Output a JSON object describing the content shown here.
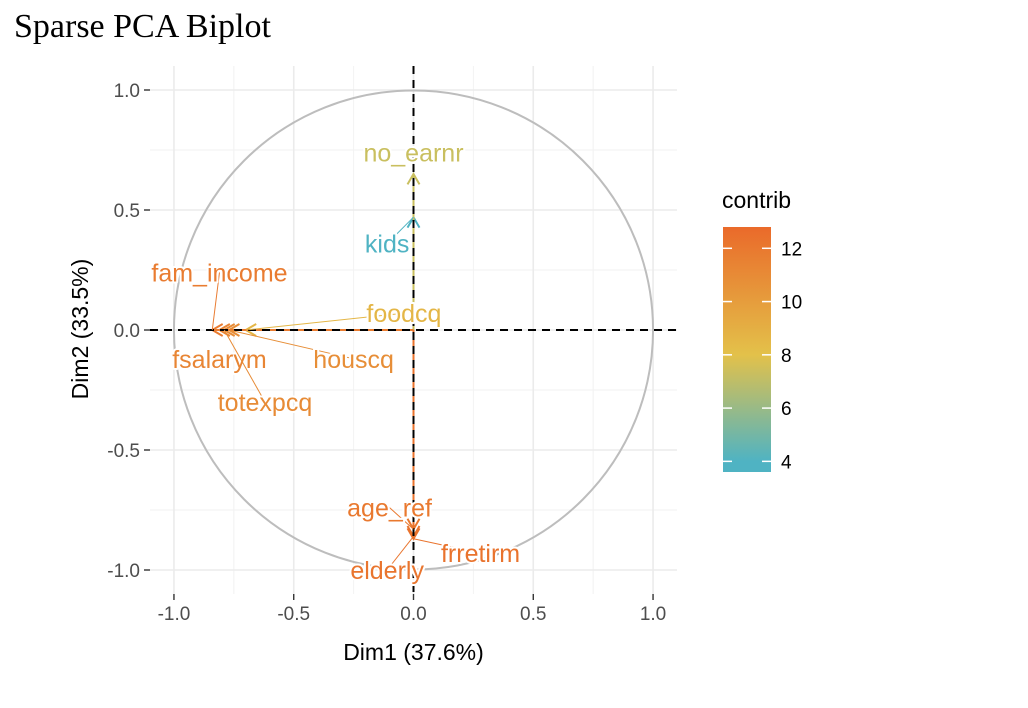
{
  "title": "Sparse PCA Biplot",
  "chart_data": {
    "type": "scatter",
    "subtype": "pca-variable-correlation-circle",
    "xlabel": "Dim1 (37.6%)",
    "ylabel": "Dim2 (33.5%)",
    "xlim": [
      -1.1,
      1.1
    ],
    "ylim": [
      -1.1,
      1.1
    ],
    "x_ticks": [
      {
        "value": -1.0,
        "label": "-1.0"
      },
      {
        "value": -0.5,
        "label": "-0.5"
      },
      {
        "value": 0.0,
        "label": "0.0"
      },
      {
        "value": 0.5,
        "label": "0.5"
      },
      {
        "value": 1.0,
        "label": "1.0"
      }
    ],
    "y_ticks": [
      {
        "value": 1.0,
        "label": "1.0"
      },
      {
        "value": 0.5,
        "label": "0.5"
      },
      {
        "value": 0.0,
        "label": "0.0"
      },
      {
        "value": -0.5,
        "label": "-0.5"
      },
      {
        "value": -1.0,
        "label": "-1.0"
      }
    ],
    "grid": true,
    "unit_circle": true,
    "color_scale": {
      "name": "contrib",
      "min": 3.6,
      "max": 12.8,
      "stops": [
        {
          "value": 4,
          "color": "#4fb3c3"
        },
        {
          "value": 8,
          "color": "#e3c14a"
        },
        {
          "value": 12.8,
          "color": "#ea6a2a"
        }
      ],
      "ticks": [
        "12",
        "10",
        "8",
        "6",
        "4"
      ],
      "legend_position": "right"
    },
    "variables": [
      {
        "name": "no_earnr",
        "x": 0.0,
        "y": 0.65,
        "contrib": 7.3,
        "label_x": 0.0,
        "label_y": 0.74
      },
      {
        "name": "kids",
        "x": 0.0,
        "y": 0.47,
        "contrib": 3.9,
        "label_x": -0.11,
        "label_y": 0.36
      },
      {
        "name": "fam_income",
        "x": -0.84,
        "y": 0.0,
        "contrib": 11.8,
        "label_x": -0.81,
        "label_y": 0.24
      },
      {
        "name": "foodcq",
        "x": -0.7,
        "y": 0.0,
        "contrib": 8.6,
        "label_x": -0.04,
        "label_y": 0.07
      },
      {
        "name": "fsalarym",
        "x": -0.81,
        "y": 0.0,
        "contrib": 11.3,
        "label_x": -0.81,
        "label_y": -0.12
      },
      {
        "name": "houscq",
        "x": -0.77,
        "y": 0.0,
        "contrib": 10.8,
        "label_x": -0.25,
        "label_y": -0.12
      },
      {
        "name": "totexpcq",
        "x": -0.79,
        "y": 0.0,
        "contrib": 11.0,
        "label_x": -0.62,
        "label_y": -0.3
      },
      {
        "name": "age_ref",
        "x": 0.0,
        "y": -0.83,
        "contrib": 12.0,
        "label_x": -0.1,
        "label_y": -0.74
      },
      {
        "name": "frretirm",
        "x": 0.0,
        "y": -0.87,
        "contrib": 12.3,
        "label_x": 0.28,
        "label_y": -0.93
      },
      {
        "name": "elderly",
        "x": 0.0,
        "y": -0.86,
        "contrib": 12.2,
        "label_x": -0.11,
        "label_y": -1.0
      }
    ]
  }
}
